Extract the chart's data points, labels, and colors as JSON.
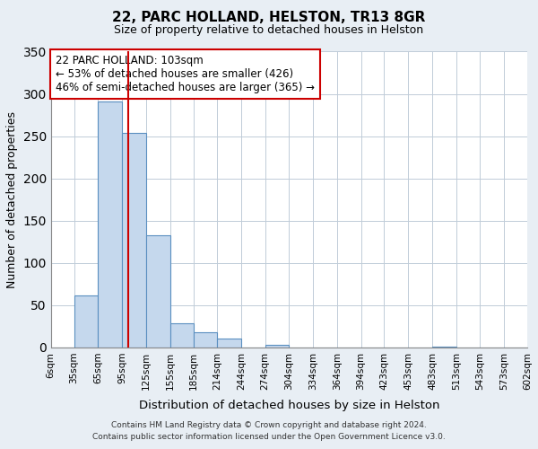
{
  "title": "22, PARC HOLLAND, HELSTON, TR13 8GR",
  "subtitle": "Size of property relative to detached houses in Helston",
  "xlabel": "Distribution of detached houses by size in Helston",
  "ylabel": "Number of detached properties",
  "bin_edges": [
    6,
    35,
    65,
    95,
    125,
    155,
    185,
    214,
    244,
    274,
    304,
    334,
    364,
    394,
    423,
    453,
    483,
    513,
    543,
    573,
    602
  ],
  "bin_labels": [
    "6sqm",
    "35sqm",
    "65sqm",
    "95sqm",
    "125sqm",
    "155sqm",
    "185sqm",
    "214sqm",
    "244sqm",
    "274sqm",
    "304sqm",
    "334sqm",
    "364sqm",
    "394sqm",
    "423sqm",
    "453sqm",
    "483sqm",
    "513sqm",
    "543sqm",
    "573sqm",
    "602sqm"
  ],
  "counts": [
    0,
    62,
    291,
    254,
    133,
    29,
    18,
    11,
    0,
    3,
    0,
    0,
    0,
    0,
    0,
    0,
    1,
    0,
    0,
    0
  ],
  "bar_color": "#c5d8ed",
  "bar_edge_color": "#5a8fc0",
  "property_line_x": 103,
  "property_line_color": "#cc0000",
  "annotation_text": "22 PARC HOLLAND: 103sqm\n← 53% of detached houses are smaller (426)\n46% of semi-detached houses are larger (365) →",
  "annotation_box_color": "white",
  "annotation_box_edge_color": "#cc0000",
  "ylim": [
    0,
    350
  ],
  "yticks": [
    0,
    50,
    100,
    150,
    200,
    250,
    300,
    350
  ],
  "footnote1": "Contains HM Land Registry data © Crown copyright and database right 2024.",
  "footnote2": "Contains public sector information licensed under the Open Government Licence v3.0.",
  "background_color": "#e8eef4",
  "plot_background_color": "white",
  "grid_color": "#c0ccd8",
  "title_fontsize": 11,
  "subtitle_fontsize": 9,
  "ylabel_fontsize": 9,
  "xlabel_fontsize": 9.5,
  "tick_fontsize": 7.5
}
